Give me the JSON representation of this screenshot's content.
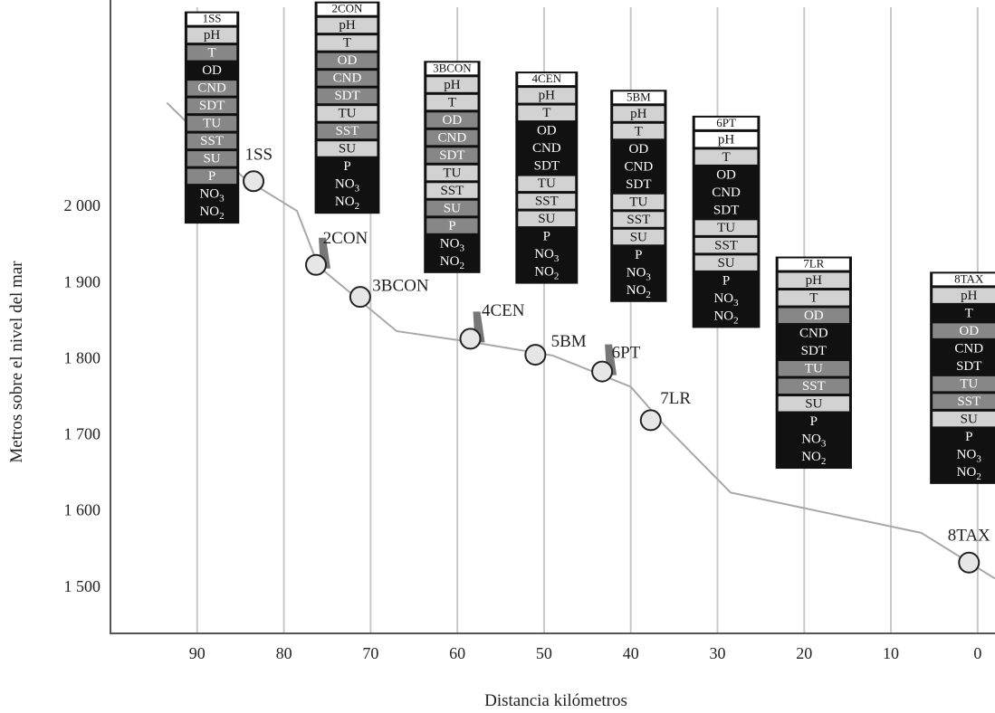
{
  "chart_data": {
    "type": "line",
    "title": "",
    "xlabel": "Distancia kilómetros",
    "ylabel": "Metros sobre el nivel del mar",
    "xlim": [
      100,
      -2
    ],
    "ylim": [
      1438,
      2270
    ],
    "x_ticks": [
      90,
      80,
      70,
      60,
      50,
      40,
      30,
      20,
      10,
      0
    ],
    "x_tick_labels": [
      "90",
      "80",
      "70",
      "60",
      "50",
      "40",
      "30",
      "20",
      "10",
      "0"
    ],
    "y_ticks": [
      2000,
      1900,
      1800,
      1700,
      1600,
      1500
    ],
    "y_tick_labels": [
      "2 000",
      "1 900",
      "1 800",
      "1 700",
      "1 600",
      "1 500"
    ],
    "grid": "vertical",
    "series": [
      {
        "values": [
          {
            "x": 93.5,
            "y": 2135
          },
          {
            "x": 84.5,
            "y": 2035
          },
          {
            "x": 78.5,
            "y": 1993
          },
          {
            "x": 76.0,
            "y": 1920
          },
          {
            "x": 67.0,
            "y": 1835
          },
          {
            "x": 58.0,
            "y": 1820
          },
          {
            "x": 49.0,
            "y": 1803
          },
          {
            "x": 40.0,
            "y": 1762
          },
          {
            "x": 36.0,
            "y": 1710
          },
          {
            "x": 28.5,
            "y": 1623
          },
          {
            "x": 6.5,
            "y": 1570
          },
          {
            "x": -2.0,
            "y": 1510
          }
        ]
      }
    ],
    "stations": [
      {
        "name": "1SS",
        "x": 83.5,
        "y": 2032,
        "marker": false,
        "label_x": 84.5,
        "label_y": 2060,
        "card_x": 88.3,
        "card_top_y": 2255,
        "card_width": 6.3,
        "params": [
          {
            "label": "pH",
            "color": "#d2d2d2"
          },
          {
            "label": "T",
            "color": "#878787"
          },
          {
            "label": "OD",
            "color": "#262626"
          },
          {
            "label": "CND",
            "color": "#878787"
          },
          {
            "label": "SDT",
            "color": "#878787"
          },
          {
            "label": "TU",
            "color": "#878787"
          },
          {
            "label": "SST",
            "color": "#878787"
          },
          {
            "label": "SU",
            "color": "#878787"
          },
          {
            "label": "P",
            "color": "#878787"
          },
          {
            "label": "NO3",
            "color": "#262626"
          },
          {
            "label": "NO2",
            "color": "#262626"
          }
        ]
      },
      {
        "name": "2CON",
        "x": 76.3,
        "y": 1922,
        "marker": true,
        "label_x": 75.5,
        "label_y": 1950,
        "card_x": 72.7,
        "card_top_y": 2268,
        "card_width": 7.5,
        "params": [
          {
            "label": "pH",
            "color": "#d2d2d2"
          },
          {
            "label": "T",
            "color": "#d2d2d2"
          },
          {
            "label": "OD",
            "color": "#878787"
          },
          {
            "label": "CND",
            "color": "#878787"
          },
          {
            "label": "SDT",
            "color": "#878787"
          },
          {
            "label": "TU",
            "color": "#d2d2d2"
          },
          {
            "label": "SST",
            "color": "#878787"
          },
          {
            "label": "SU",
            "color": "#d2d2d2"
          },
          {
            "label": "P",
            "color": "#262626"
          },
          {
            "label": "NO3",
            "color": "#262626"
          },
          {
            "label": "NO2",
            "color": "#262626"
          }
        ]
      },
      {
        "name": "3BCON",
        "x": 71.2,
        "y": 1880,
        "marker": false,
        "label_x": 69.8,
        "label_y": 1888,
        "card_x": 60.6,
        "card_top_y": 2190,
        "card_width": 6.5,
        "params": [
          {
            "label": "pH",
            "color": "#d2d2d2"
          },
          {
            "label": "T",
            "color": "#d2d2d2"
          },
          {
            "label": "OD",
            "color": "#878787"
          },
          {
            "label": "CND",
            "color": "#878787"
          },
          {
            "label": "SDT",
            "color": "#878787"
          },
          {
            "label": "TU",
            "color": "#d2d2d2"
          },
          {
            "label": "SST",
            "color": "#d2d2d2"
          },
          {
            "label": "SU",
            "color": "#878787"
          },
          {
            "label": "P",
            "color": "#878787"
          },
          {
            "label": "NO3",
            "color": "#262626"
          },
          {
            "label": "NO2",
            "color": "#262626"
          }
        ]
      },
      {
        "name": "4CEN",
        "x": 58.5,
        "y": 1825,
        "marker": true,
        "label_x": 57.2,
        "label_y": 1855,
        "card_x": 49.7,
        "card_top_y": 2176,
        "card_width": 7.2,
        "params": [
          {
            "label": "pH",
            "color": "#d2d2d2"
          },
          {
            "label": "T",
            "color": "#d2d2d2"
          },
          {
            "label": "OD",
            "color": "#262626"
          },
          {
            "label": "CND",
            "color": "#262626"
          },
          {
            "label": "SDT",
            "color": "#262626"
          },
          {
            "label": "TU",
            "color": "#d2d2d2"
          },
          {
            "label": "SST",
            "color": "#d2d2d2"
          },
          {
            "label": "SU",
            "color": "#d2d2d2"
          },
          {
            "label": "P",
            "color": "#262626"
          },
          {
            "label": "NO3",
            "color": "#262626"
          },
          {
            "label": "NO2",
            "color": "#262626"
          }
        ]
      },
      {
        "name": "5BM",
        "x": 51.0,
        "y": 1804,
        "marker": false,
        "label_x": 49.2,
        "label_y": 1815,
        "card_x": 39.1,
        "card_top_y": 2152,
        "card_width": 6.5,
        "params": [
          {
            "label": "pH",
            "color": "#d2d2d2"
          },
          {
            "label": "T",
            "color": "#d2d2d2"
          },
          {
            "label": "OD",
            "color": "#262626"
          },
          {
            "label": "CND",
            "color": "#262626"
          },
          {
            "label": "SDT",
            "color": "#262626"
          },
          {
            "label": "TU",
            "color": "#d2d2d2"
          },
          {
            "label": "SST",
            "color": "#d2d2d2"
          },
          {
            "label": "SU",
            "color": "#d2d2d2"
          },
          {
            "label": "P",
            "color": "#262626"
          },
          {
            "label": "NO3",
            "color": "#262626"
          },
          {
            "label": "NO2",
            "color": "#262626"
          }
        ]
      },
      {
        "name": "6PT",
        "x": 43.3,
        "y": 1782,
        "marker": true,
        "label_x": 42.2,
        "label_y": 1800,
        "card_x": 29.0,
        "card_top_y": 2118,
        "card_width": 7.8,
        "params": [
          {
            "label": "pH",
            "color": "#ffffff"
          },
          {
            "label": "T",
            "color": "#d2d2d2"
          },
          {
            "label": "OD",
            "color": "#262626"
          },
          {
            "label": "CND",
            "color": "#262626"
          },
          {
            "label": "SDT",
            "color": "#262626"
          },
          {
            "label": "TU",
            "color": "#d2d2d2"
          },
          {
            "label": "SST",
            "color": "#d2d2d2"
          },
          {
            "label": "SU",
            "color": "#d2d2d2"
          },
          {
            "label": "P",
            "color": "#262626"
          },
          {
            "label": "NO3",
            "color": "#262626"
          },
          {
            "label": "NO2",
            "color": "#262626"
          }
        ]
      },
      {
        "name": "7LR",
        "x": 37.7,
        "y": 1718,
        "marker": false,
        "label_x": 36.6,
        "label_y": 1740,
        "card_x": 18.9,
        "card_top_y": 1933,
        "card_width": 8.8,
        "params": [
          {
            "label": "pH",
            "color": "#d2d2d2"
          },
          {
            "label": "T",
            "color": "#d2d2d2"
          },
          {
            "label": "OD",
            "color": "#878787"
          },
          {
            "label": "CND",
            "color": "#262626"
          },
          {
            "label": "SDT",
            "color": "#262626"
          },
          {
            "label": "TU",
            "color": "#878787"
          },
          {
            "label": "SST",
            "color": "#878787"
          },
          {
            "label": "SU",
            "color": "#d2d2d2"
          },
          {
            "label": "P",
            "color": "#262626"
          },
          {
            "label": "NO3",
            "color": "#262626"
          },
          {
            "label": "NO2",
            "color": "#262626"
          }
        ]
      },
      {
        "name": "8TAX",
        "x": 1.0,
        "y": 1531,
        "marker": false,
        "label_x": 1.0,
        "label_y": 1560,
        "card_x": 1.0,
        "card_top_y": 1913,
        "card_width": 9.0,
        "params": [
          {
            "label": "pH",
            "color": "#d2d2d2"
          },
          {
            "label": "T",
            "color": "#262626"
          },
          {
            "label": "OD",
            "color": "#878787"
          },
          {
            "label": "CND",
            "color": "#262626"
          },
          {
            "label": "SDT",
            "color": "#262626"
          },
          {
            "label": "TU",
            "color": "#878787"
          },
          {
            "label": "SST",
            "color": "#878787"
          },
          {
            "label": "SU",
            "color": "#d2d2d2"
          },
          {
            "label": "P",
            "color": "#262626"
          },
          {
            "label": "NO3",
            "color": "#262626"
          },
          {
            "label": "NO2",
            "color": "#262626"
          }
        ]
      }
    ]
  },
  "colors": {
    "line": "#a8a8a8",
    "grid": "#c8c8c8",
    "axis": "#555555",
    "marker_fill": "#e6e6e6",
    "marker_stroke": "#222222",
    "card_frame": "#111111",
    "gauge": "#777777"
  }
}
